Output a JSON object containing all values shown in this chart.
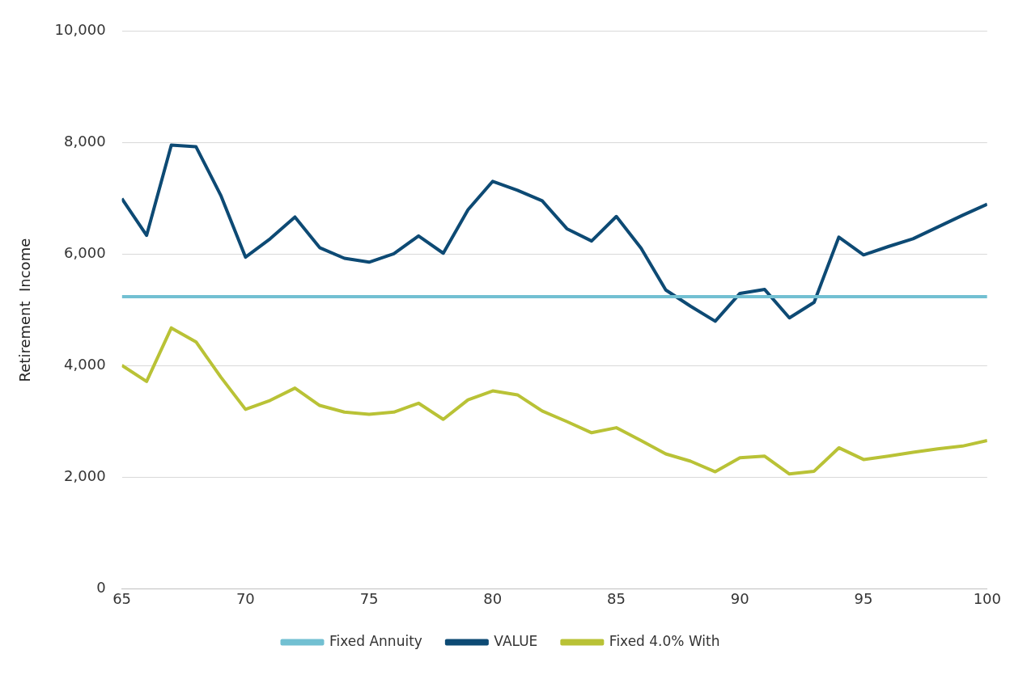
{
  "chart_data": {
    "type": "line",
    "ylabel": "Retirement  Income",
    "x": [
      65,
      66,
      67,
      68,
      69,
      70,
      71,
      72,
      73,
      74,
      75,
      76,
      77,
      78,
      79,
      80,
      81,
      82,
      83,
      84,
      85,
      86,
      87,
      88,
      89,
      90,
      91,
      92,
      93,
      94,
      95,
      96,
      97,
      98,
      99,
      100
    ],
    "series": [
      {
        "name": "Fixed Annuity",
        "color": "#72c0d2",
        "values": [
          5240,
          5240,
          5240,
          5240,
          5240,
          5240,
          5240,
          5240,
          5240,
          5240,
          5240,
          5240,
          5240,
          5240,
          5240,
          5240,
          5240,
          5240,
          5240,
          5240,
          5240,
          5240,
          5240,
          5240,
          5240,
          5240,
          5240,
          5240,
          5240,
          5240,
          5240,
          5240,
          5240,
          5240,
          5240,
          5240
        ]
      },
      {
        "name": "VALUE",
        "color": "#0d4a74",
        "values": [
          7000,
          6340,
          7960,
          7930,
          7060,
          5950,
          6280,
          6670,
          6120,
          5930,
          5860,
          6010,
          6330,
          6020,
          6800,
          7310,
          7150,
          6960,
          6460,
          6240,
          6680,
          6110,
          5360,
          5070,
          4800,
          5300,
          5370,
          4860,
          5140,
          6310,
          5990,
          6140,
          6280,
          6490,
          6700,
          6900
        ]
      },
      {
        "name": "Fixed 4.0% With",
        "color": "#b9c236",
        "values": [
          4010,
          3720,
          4680,
          4430,
          3800,
          3220,
          3380,
          3600,
          3290,
          3170,
          3130,
          3170,
          3330,
          3040,
          3390,
          3550,
          3480,
          3190,
          3000,
          2800,
          2890,
          2660,
          2420,
          2290,
          2100,
          2350,
          2380,
          2060,
          2110,
          2530,
          2320,
          2380,
          2450,
          2510,
          2560,
          2660
        ]
      }
    ],
    "xlim": [
      65,
      100
    ],
    "xticks": [
      65,
      70,
      75,
      80,
      85,
      90,
      95,
      100
    ],
    "ylim": [
      0,
      10000
    ],
    "yticks": [
      {
        "value": 0,
        "label": "0"
      },
      {
        "value": 2000,
        "label": "2,000"
      },
      {
        "value": 4000,
        "label": "4,000"
      },
      {
        "value": 6000,
        "label": "6,000"
      },
      {
        "value": 8000,
        "label": "8,000"
      },
      {
        "value": 10000,
        "label": "10,000"
      }
    ],
    "grid": "y",
    "legend": "bottom",
    "marker": "none",
    "line_style": "solid"
  }
}
